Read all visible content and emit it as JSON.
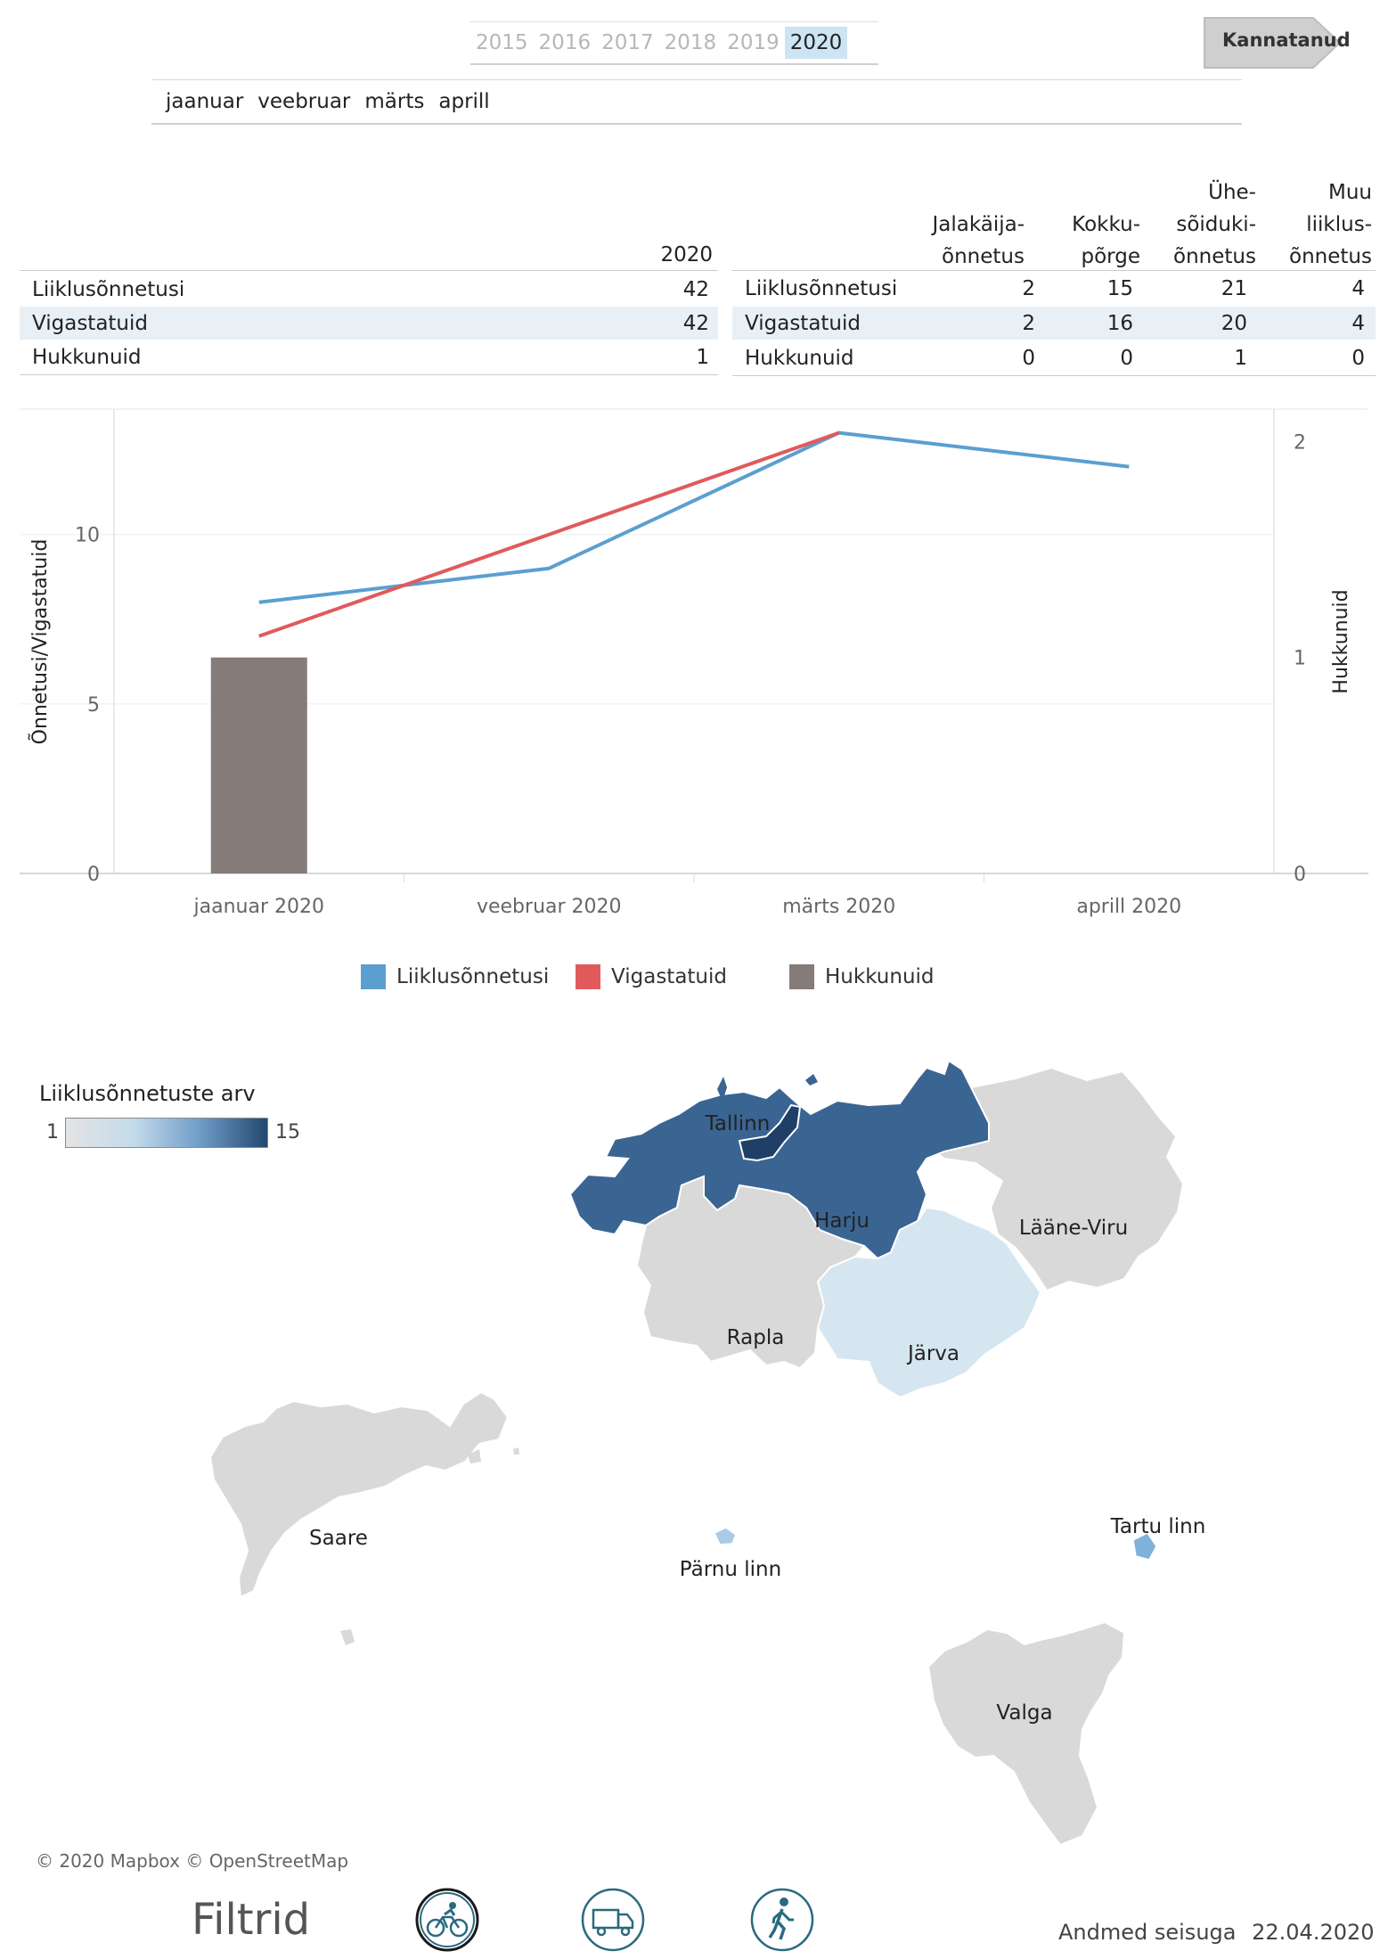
{
  "years": [
    "2015",
    "2016",
    "2017",
    "2018",
    "2019",
    "2020"
  ],
  "selected_year": "2020",
  "nav_button": "Kannatanud",
  "months": [
    "jaanuar",
    "veebruar",
    "märts",
    "aprill"
  ],
  "summary_table": {
    "column": "2020",
    "rows": [
      {
        "label": "Liiklusõnnetusi",
        "value": "42"
      },
      {
        "label": "Vigastatuid",
        "value": "42"
      },
      {
        "label": "Hukkunuid",
        "value": "1"
      }
    ]
  },
  "type_table": {
    "columns": [
      [
        "Jalakäija-",
        "õnnetus"
      ],
      [
        "Kokku-",
        "põrge"
      ],
      [
        "Ühe-",
        "sõiduki-",
        "õnnetus"
      ],
      [
        "Muu",
        "liiklus-",
        "õnnetus"
      ]
    ],
    "rows": [
      {
        "label": "Liiklusõnnetusi",
        "values": [
          "2",
          "15",
          "21",
          "4"
        ]
      },
      {
        "label": "Vigastatuid",
        "values": [
          "2",
          "16",
          "20",
          "4"
        ]
      },
      {
        "label": "Hukkunuid",
        "values": [
          "0",
          "0",
          "1",
          "0"
        ]
      }
    ]
  },
  "chart_data": {
    "type": "line",
    "categories": [
      "jaanuar 2020",
      "veebruar 2020",
      "märts 2020",
      "aprill 2020"
    ],
    "series": [
      {
        "name": "Liiklusõnnetusi",
        "axis": "left",
        "type": "line",
        "color": "#5b9fd0",
        "values": [
          8,
          9,
          13,
          12
        ]
      },
      {
        "name": "Vigastatuid",
        "axis": "left",
        "type": "line",
        "color": "#e05a5c",
        "values": [
          7,
          10,
          13,
          null
        ]
      },
      {
        "name": "Hukkunuid",
        "axis": "right",
        "type": "bar",
        "color": "#857b78",
        "values": [
          1,
          0,
          0,
          0
        ]
      }
    ],
    "ylabel_left": "Õnnetusi/Vigastatuid",
    "ylabel_right": "Hukkunuid",
    "ylim_left": [
      0,
      13.7
    ],
    "ylim_right": [
      0,
      2.15
    ],
    "yticks_left": [
      "0",
      "5",
      "10"
    ],
    "yticks_right": [
      "0",
      "1",
      "2"
    ],
    "legend": [
      "Liiklusõnnetusi",
      "Vigastatuid",
      "Hukkunuid"
    ]
  },
  "map": {
    "legend_title": "Liiklusõnnetuste arv",
    "legend_min": "1",
    "legend_max": "15",
    "color_low": "#d6e6f1",
    "color_high": "#335d8c",
    "regions": [
      {
        "name": "Tallinn"
      },
      {
        "name": "Harju"
      },
      {
        "name": "Lääne-Viru"
      },
      {
        "name": "Rapla"
      },
      {
        "name": "Järva"
      },
      {
        "name": "Saare"
      },
      {
        "name": "Pärnu linn"
      },
      {
        "name": "Tartu linn"
      },
      {
        "name": "Valga"
      }
    ],
    "attribution": "© 2020 Mapbox © OpenStreetMap"
  },
  "footer": {
    "filters_label": "Filtrid",
    "icons": [
      "bicycle-icon",
      "truck-icon",
      "pedestrian-icon"
    ],
    "data_date_label": "Andmed seisuga",
    "data_date": "22.04.2020"
  }
}
